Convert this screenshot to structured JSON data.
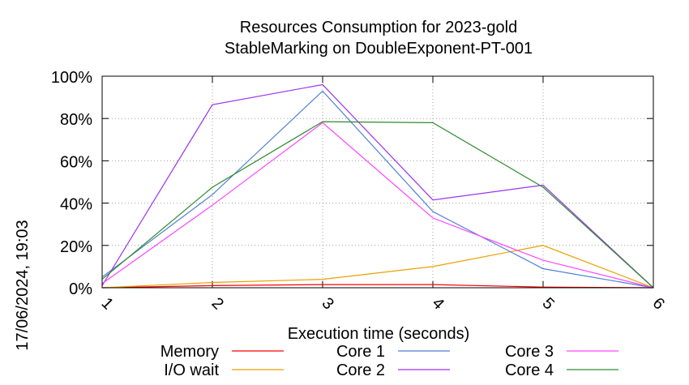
{
  "chart_data": {
    "type": "line",
    "title": "Resources Consumption for 2023-gold",
    "subtitle": "StableMarking on DoubleExponent-PT-001",
    "xlabel": "Execution time (seconds)",
    "ylabel": "",
    "side_label": "17/06/2024, 19:03",
    "x": [
      1,
      2,
      3,
      4,
      5,
      6
    ],
    "xlim": [
      1,
      6
    ],
    "ylim": [
      0,
      100
    ],
    "y_ticks": [
      "0%",
      "20%",
      "40%",
      "60%",
      "80%",
      "100%"
    ],
    "x_ticks": [
      "1",
      "2",
      "3",
      "4",
      "5",
      "6"
    ],
    "grid": true,
    "legend_position": "bottom",
    "series": [
      {
        "name": "Memory",
        "color": "#ff0000",
        "values": [
          0,
          1,
          1.5,
          1.5,
          0.3,
          0
        ]
      },
      {
        "name": "I/O wait",
        "color": "#e8a000",
        "values": [
          0,
          2.5,
          4,
          10,
          20,
          0
        ]
      },
      {
        "name": "Core 1",
        "color": "#4f7fd6",
        "values": [
          5,
          44,
          93,
          36,
          9,
          0
        ]
      },
      {
        "name": "Core 2",
        "color": "#9933ee",
        "values": [
          1,
          86.5,
          96,
          41.5,
          48.5,
          0
        ]
      },
      {
        "name": "Core 3",
        "color": "#ff44ff",
        "values": [
          2,
          39,
          78,
          33,
          13,
          0
        ]
      },
      {
        "name": "Core 4",
        "color": "#2e8b2e",
        "values": [
          4,
          47.5,
          78.5,
          78,
          47.5,
          0
        ]
      }
    ]
  }
}
